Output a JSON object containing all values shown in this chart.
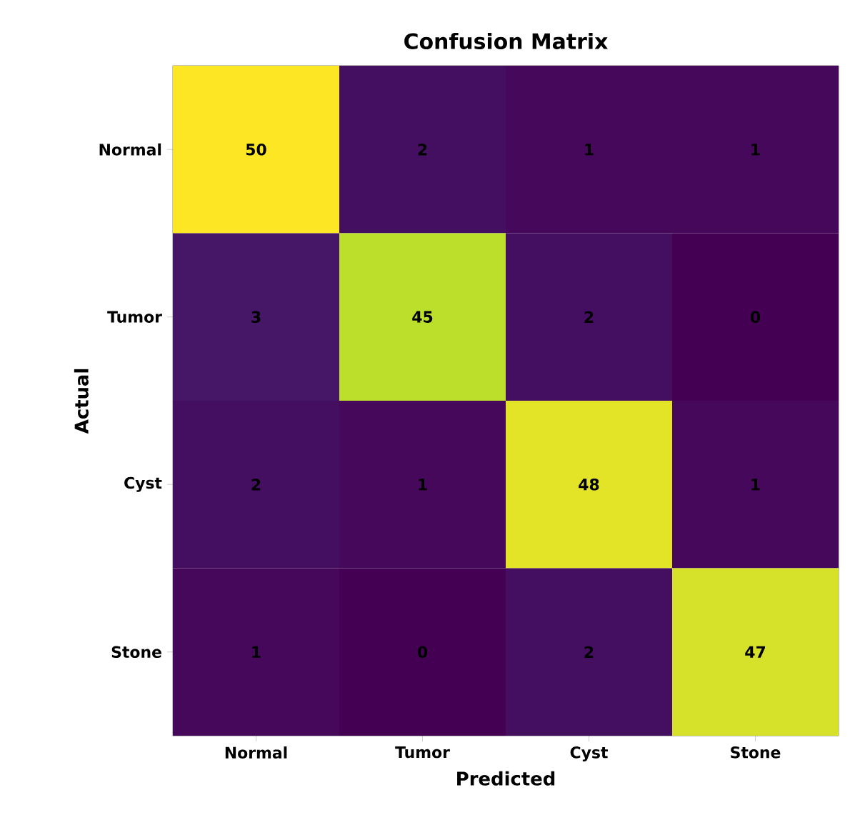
{
  "chart_data": {
    "type": "heatmap",
    "title": "Confusion Matrix",
    "xlabel": "Predicted",
    "ylabel": "Actual",
    "categories": [
      "Normal",
      "Tumor",
      "Cyst",
      "Stone"
    ],
    "y_categories": [
      "Normal",
      "Tumor",
      "Cyst",
      "Stone"
    ],
    "cells": [
      [
        50,
        2,
        1,
        1
      ],
      [
        3,
        45,
        2,
        0
      ],
      [
        2,
        1,
        48,
        1
      ],
      [
        1,
        0,
        2,
        47
      ]
    ],
    "data_labels": true
  }
}
